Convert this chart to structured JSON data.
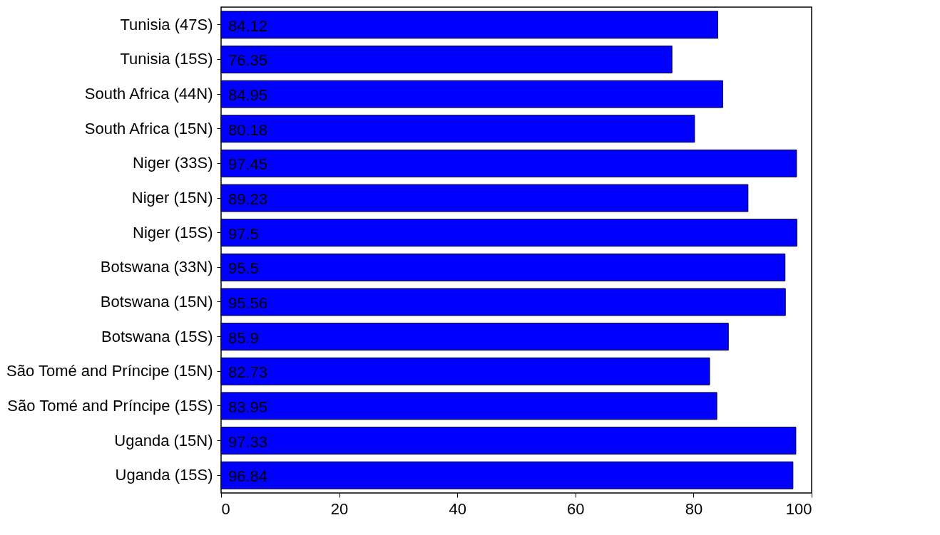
{
  "chart_data": {
    "type": "bar",
    "orientation": "horizontal",
    "categories": [
      "Tunisia (47S)",
      "Tunisia (15S)",
      "South Africa (44N)",
      "South Africa (15N)",
      "Niger (33S)",
      "Niger (15N)",
      "Niger (15S)",
      "Botswana (33N)",
      "Botswana (15N)",
      "Botswana (15S)",
      "São Tomé and Príncipe (15N)",
      "São Tomé and Príncipe (15S)",
      "Uganda (15N)",
      "Uganda (15S)"
    ],
    "values": [
      84.12,
      76.35,
      84.95,
      80.18,
      97.45,
      89.23,
      97.5,
      95.5,
      95.56,
      85.9,
      82.73,
      83.95,
      97.33,
      96.84
    ],
    "color": "#0000ff",
    "xlim": [
      0,
      100
    ],
    "xticks": [
      0,
      20,
      40,
      60,
      80,
      100
    ],
    "data_labels": true,
    "grid": false
  }
}
